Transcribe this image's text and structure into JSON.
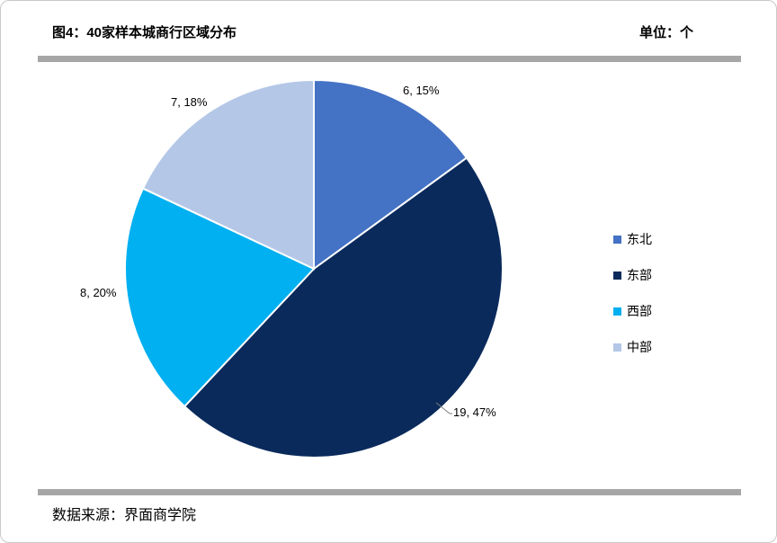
{
  "header": {
    "title": "图4：40家样本城商行区域分布",
    "unit": "单位：个"
  },
  "footer": {
    "source": "数据来源：界面商学院"
  },
  "chart_data": {
    "type": "pie",
    "title": "图4：40家样本城商行区域分布",
    "unit": "个",
    "categories": [
      "东北",
      "东部",
      "西部",
      "中部"
    ],
    "values": [
      6,
      19,
      8,
      7
    ],
    "percents": [
      15,
      47,
      20,
      18
    ],
    "labels": [
      "6, 15%",
      "19, 47%",
      "8, 20%",
      "7, 18%"
    ],
    "colors": [
      "#4472C4",
      "#0A2A5C",
      "#00B0F0",
      "#B4C7E7"
    ],
    "legend_position": "right",
    "start_angle_deg": 0,
    "direction": "clockwise",
    "source": "数据来源：界面商学院"
  }
}
